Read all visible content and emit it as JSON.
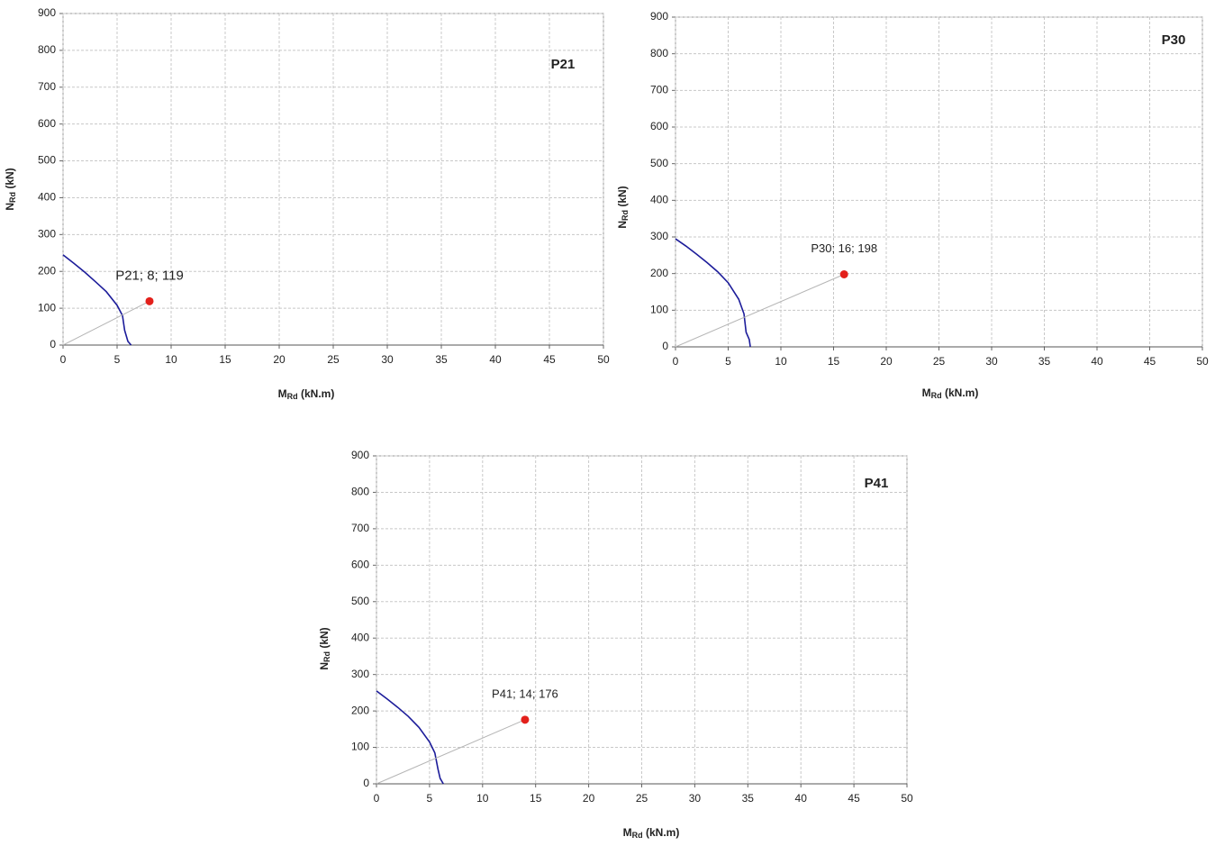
{
  "chart_data": [
    {
      "type": "line",
      "title": "P21",
      "xlabel": [
        "M",
        "Rd",
        " (kN.m)"
      ],
      "ylabel": [
        "N",
        "Rd",
        " (kN)"
      ],
      "xlim": [
        0,
        50
      ],
      "xticks": [
        0,
        5,
        10,
        15,
        20,
        25,
        30,
        35,
        40,
        45,
        50
      ],
      "ylim": [
        0,
        900
      ],
      "yticks": [
        0,
        100,
        200,
        300,
        400,
        500,
        600,
        700,
        800,
        900
      ],
      "grid": true,
      "series": [
        {
          "type": "line",
          "color": "#1c1c9a",
          "x": [
            0,
            1,
            2,
            3,
            4,
            5,
            5.5,
            5.7,
            6,
            6.3
          ],
          "values": [
            245,
            222,
            198,
            172,
            145,
            108,
            80,
            40,
            10,
            0
          ]
        },
        {
          "type": "line",
          "color": "#b5b5b5",
          "x": [
            0,
            8
          ],
          "values": [
            0,
            119
          ]
        },
        {
          "type": "scatter",
          "color": "#e3201b",
          "x": [
            8
          ],
          "values": [
            119
          ],
          "value_labels": [
            "P21; 8; 119"
          ]
        }
      ]
    },
    {
      "type": "line",
      "title": "P30",
      "xlabel": [
        "M",
        "Rd",
        " (kN.m)"
      ],
      "ylabel": [
        "N",
        "Rd",
        " (kN)"
      ],
      "xlim": [
        0,
        50
      ],
      "xticks": [
        0,
        5,
        10,
        15,
        20,
        25,
        30,
        35,
        40,
        45,
        50
      ],
      "ylim": [
        0,
        900
      ],
      "yticks": [
        0,
        100,
        200,
        300,
        400,
        500,
        600,
        700,
        800,
        900
      ],
      "grid": true,
      "series": [
        {
          "type": "line",
          "color": "#1c1c9a",
          "x": [
            0,
            1,
            2,
            3,
            4,
            5,
            6,
            6.5,
            6.7,
            7,
            7.1
          ],
          "values": [
            295,
            275,
            253,
            230,
            205,
            175,
            130,
            90,
            40,
            20,
            0
          ]
        },
        {
          "type": "line",
          "color": "#b5b5b5",
          "x": [
            0,
            16
          ],
          "values": [
            0,
            198
          ]
        },
        {
          "type": "scatter",
          "color": "#e3201b",
          "x": [
            16
          ],
          "values": [
            198
          ],
          "value_labels": [
            "P30; 16; 198"
          ]
        }
      ]
    },
    {
      "type": "line",
      "title": "P41",
      "xlabel": [
        "M",
        "Rd",
        " (kN.m)"
      ],
      "ylabel": [
        "N",
        "Rd",
        " (kN)"
      ],
      "xlim": [
        0,
        50
      ],
      "xticks": [
        0,
        5,
        10,
        15,
        20,
        25,
        30,
        35,
        40,
        45,
        50
      ],
      "ylim": [
        0,
        900
      ],
      "yticks": [
        0,
        100,
        200,
        300,
        400,
        500,
        600,
        700,
        800,
        900
      ],
      "grid": true,
      "series": [
        {
          "type": "line",
          "color": "#1c1c9a",
          "x": [
            0,
            1,
            2,
            3,
            4,
            5,
            5.5,
            5.8,
            6,
            6.3
          ],
          "values": [
            255,
            233,
            210,
            185,
            155,
            115,
            85,
            40,
            15,
            0
          ]
        },
        {
          "type": "line",
          "color": "#b5b5b5",
          "x": [
            0,
            14
          ],
          "values": [
            0,
            176
          ]
        },
        {
          "type": "scatter",
          "color": "#e3201b",
          "x": [
            14
          ],
          "values": [
            176
          ],
          "value_labels": [
            "P41; 14; 176"
          ]
        }
      ]
    }
  ]
}
